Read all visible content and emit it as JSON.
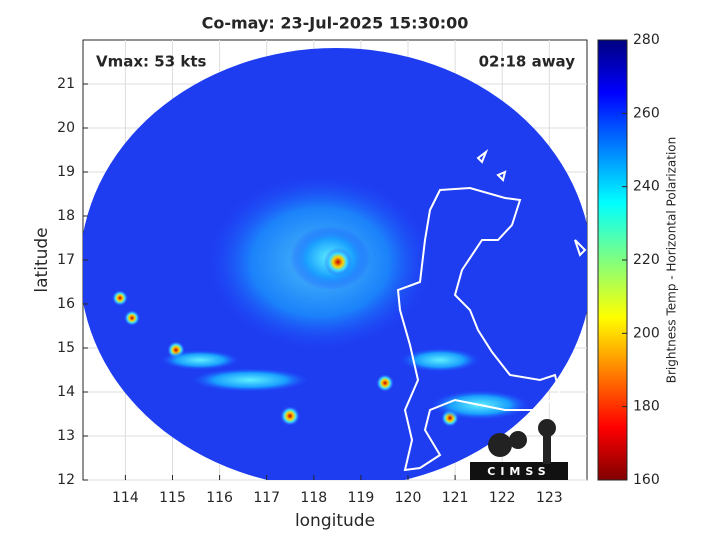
{
  "map": {
    "title": "Co-may: 23-Jul-2025 15:30:00",
    "annotations": [
      "Vmax: 53 kts",
      "02:18 away"
    ],
    "x_axis": {
      "label": "longitude",
      "lim": [
        113.1,
        123.8
      ],
      "ticks": [
        114,
        115,
        116,
        117,
        118,
        119,
        120,
        121,
        122,
        123
      ]
    },
    "y_axis": {
      "label": "latitude",
      "lim": [
        12,
        22
      ],
      "ticks": [
        12,
        13,
        14,
        15,
        16,
        17,
        18,
        19,
        20,
        21
      ]
    },
    "colorbar": {
      "label": "Brightness Temp - Horizontal Polarization",
      "lim": [
        160,
        280
      ],
      "ticks": [
        160,
        180,
        200,
        220,
        240,
        260,
        280
      ]
    },
    "logo": "CIMSS"
  }
}
